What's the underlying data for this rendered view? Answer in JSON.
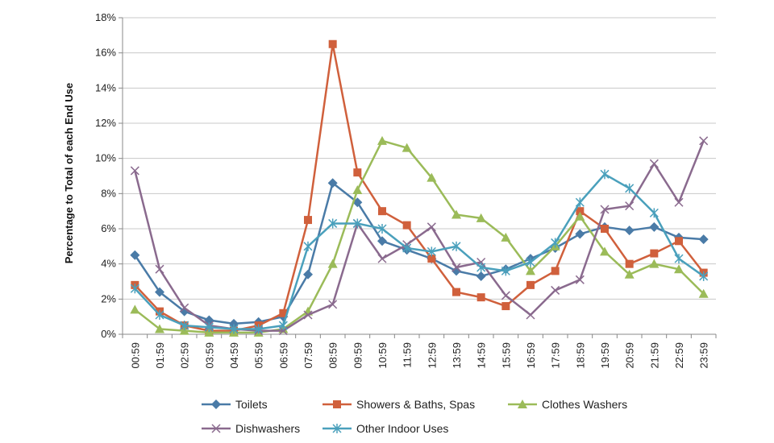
{
  "chart_data": {
    "type": "line",
    "ylabel": "Percentage to Total of each End Use",
    "xlabel": "",
    "ylim": [
      0,
      18
    ],
    "ytick_step": 2,
    "y_unit": "%",
    "grid": "horizontal",
    "legend_position": "bottom",
    "categories": [
      "00:59",
      "01:59",
      "02:59",
      "03:59",
      "04:59",
      "05:59",
      "06:59",
      "07:59",
      "08:59",
      "09:59",
      "10:59",
      "11:59",
      "12:59",
      "13:59",
      "14:59",
      "15:59",
      "16:59",
      "17:59",
      "18:59",
      "19:59",
      "20:59",
      "21:59",
      "22:59",
      "23:59"
    ],
    "series": [
      {
        "name": "Toilets",
        "color": "#4a7ba7",
        "marker": "diamond",
        "values": [
          4.5,
          2.4,
          1.3,
          0.8,
          0.6,
          0.7,
          1.0,
          3.4,
          8.6,
          7.5,
          5.3,
          4.8,
          4.3,
          3.6,
          3.3,
          3.7,
          4.3,
          4.9,
          5.7,
          6.1,
          5.9,
          6.1,
          5.5,
          5.4
        ]
      },
      {
        "name": "Showers & Baths, Spas",
        "color": "#d0603c",
        "marker": "square",
        "values": [
          2.8,
          1.3,
          0.5,
          0.2,
          0.2,
          0.5,
          1.2,
          6.5,
          16.5,
          9.2,
          7.0,
          6.2,
          4.3,
          2.4,
          2.1,
          1.6,
          2.8,
          3.6,
          7.0,
          6.0,
          4.0,
          4.6,
          5.3,
          3.5
        ]
      },
      {
        "name": "Clothes Washers",
        "color": "#9bbb59",
        "marker": "triangle",
        "values": [
          1.4,
          0.3,
          0.2,
          0.1,
          0.1,
          0.1,
          0.3,
          1.3,
          4.0,
          8.2,
          11.0,
          10.6,
          8.9,
          6.8,
          6.6,
          5.5,
          3.6,
          5.0,
          6.7,
          4.7,
          3.4,
          4.0,
          3.7,
          2.3
        ]
      },
      {
        "name": "Dishwashers",
        "color": "#8a6a8e",
        "marker": "x",
        "values": [
          9.3,
          3.7,
          1.5,
          0.5,
          0.3,
          0.2,
          0.2,
          1.1,
          1.7,
          6.3,
          4.3,
          5.1,
          6.1,
          3.8,
          4.1,
          2.2,
          1.1,
          2.5,
          3.1,
          7.1,
          7.3,
          9.7,
          7.5,
          11.0
        ]
      },
      {
        "name": "Other Indoor Uses",
        "color": "#4aa0bc",
        "marker": "star",
        "values": [
          2.6,
          1.1,
          0.5,
          0.4,
          0.3,
          0.3,
          0.5,
          5.0,
          6.3,
          6.3,
          6.0,
          4.9,
          4.7,
          5.0,
          3.8,
          3.6,
          4.1,
          5.2,
          7.5,
          9.1,
          8.3,
          6.9,
          4.3,
          3.3
        ]
      }
    ]
  }
}
